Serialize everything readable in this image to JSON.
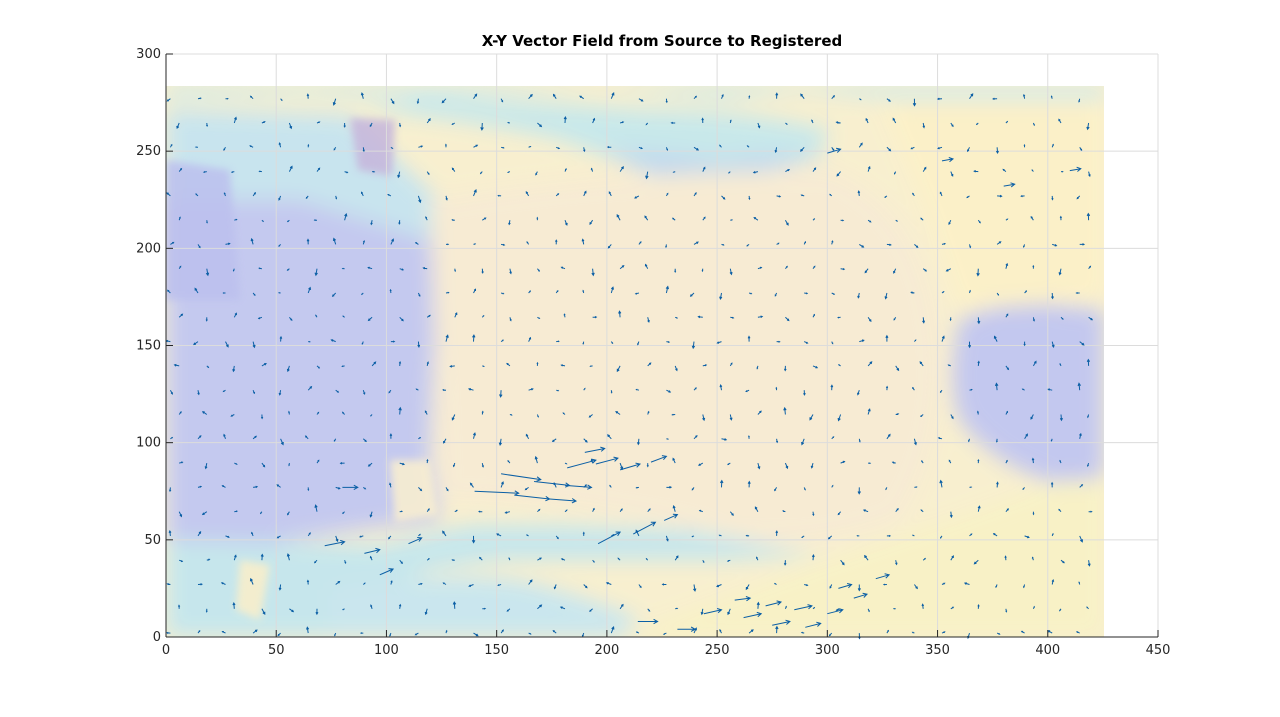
{
  "chart_data": {
    "type": "quiver",
    "title": "X-Y Vector Field from Source to Registered",
    "xlabel": "",
    "ylabel": "",
    "xlim": [
      0,
      450
    ],
    "ylim": [
      0,
      300
    ],
    "xticks": [
      0,
      50,
      100,
      150,
      200,
      250,
      300,
      350,
      400,
      450
    ],
    "yticks": [
      0,
      50,
      100,
      150,
      200,
      250,
      300
    ],
    "grid": true,
    "image_extent": {
      "x": [
        0,
        426
      ],
      "y": [
        0,
        284
      ]
    },
    "colors": {
      "vector": "#0b5fa5",
      "background_low": "#c0c8f0",
      "background_mid": "#c9ecec",
      "background_high": "#fbf1cc"
    },
    "vector_grid": {
      "x_start": 2,
      "x_step": 12.5,
      "x_count": 34,
      "y_start": 2,
      "y_step": 12.5,
      "y_count": 23
    },
    "strong_vectors": [
      {
        "x": 152,
        "y": 84,
        "u": 18,
        "v": -3
      },
      {
        "x": 167,
        "y": 80,
        "u": 16,
        "v": -2
      },
      {
        "x": 181,
        "y": 78,
        "u": 12,
        "v": -1
      },
      {
        "x": 140,
        "y": 75,
        "u": 20,
        "v": -1
      },
      {
        "x": 158,
        "y": 73,
        "u": 16,
        "v": -2
      },
      {
        "x": 174,
        "y": 71,
        "u": 12,
        "v": -1
      },
      {
        "x": 182,
        "y": 87,
        "u": 13,
        "v": 4
      },
      {
        "x": 195,
        "y": 89,
        "u": 10,
        "v": 3
      },
      {
        "x": 190,
        "y": 95,
        "u": 9,
        "v": 2
      },
      {
        "x": 206,
        "y": 86,
        "u": 9,
        "v": 3
      },
      {
        "x": 220,
        "y": 90,
        "u": 7,
        "v": 3
      },
      {
        "x": 196,
        "y": 48,
        "u": 10,
        "v": 6
      },
      {
        "x": 212,
        "y": 53,
        "u": 10,
        "v": 6
      },
      {
        "x": 226,
        "y": 60,
        "u": 6,
        "v": 3
      },
      {
        "x": 72,
        "y": 47,
        "u": 9,
        "v": 2
      },
      {
        "x": 90,
        "y": 43,
        "u": 7,
        "v": 2
      },
      {
        "x": 110,
        "y": 48,
        "u": 6,
        "v": 3
      },
      {
        "x": 97,
        "y": 32,
        "u": 6,
        "v": 3
      },
      {
        "x": 80,
        "y": 77,
        "u": 7,
        "v": 0
      },
      {
        "x": 214,
        "y": 8,
        "u": 9,
        "v": 0
      },
      {
        "x": 232,
        "y": 4,
        "u": 8,
        "v": 0
      },
      {
        "x": 244,
        "y": 12,
        "u": 8,
        "v": 2
      },
      {
        "x": 262,
        "y": 10,
        "u": 8,
        "v": 2
      },
      {
        "x": 275,
        "y": 6,
        "u": 8,
        "v": 2
      },
      {
        "x": 285,
        "y": 14,
        "u": 8,
        "v": 2
      },
      {
        "x": 290,
        "y": 5,
        "u": 7,
        "v": 2
      },
      {
        "x": 300,
        "y": 12,
        "u": 7,
        "v": 2
      },
      {
        "x": 312,
        "y": 20,
        "u": 6,
        "v": 2
      },
      {
        "x": 322,
        "y": 30,
        "u": 6,
        "v": 2
      },
      {
        "x": 305,
        "y": 25,
        "u": 6,
        "v": 2
      },
      {
        "x": 258,
        "y": 19,
        "u": 7,
        "v": 1
      },
      {
        "x": 272,
        "y": 16,
        "u": 7,
        "v": 2
      },
      {
        "x": 300,
        "y": 249,
        "u": 6,
        "v": 2
      },
      {
        "x": 352,
        "y": 245,
        "u": 5,
        "v": 1
      },
      {
        "x": 380,
        "y": 232,
        "u": 5,
        "v": 1
      },
      {
        "x": 410,
        "y": 240,
        "u": 5,
        "v": 1
      }
    ]
  }
}
